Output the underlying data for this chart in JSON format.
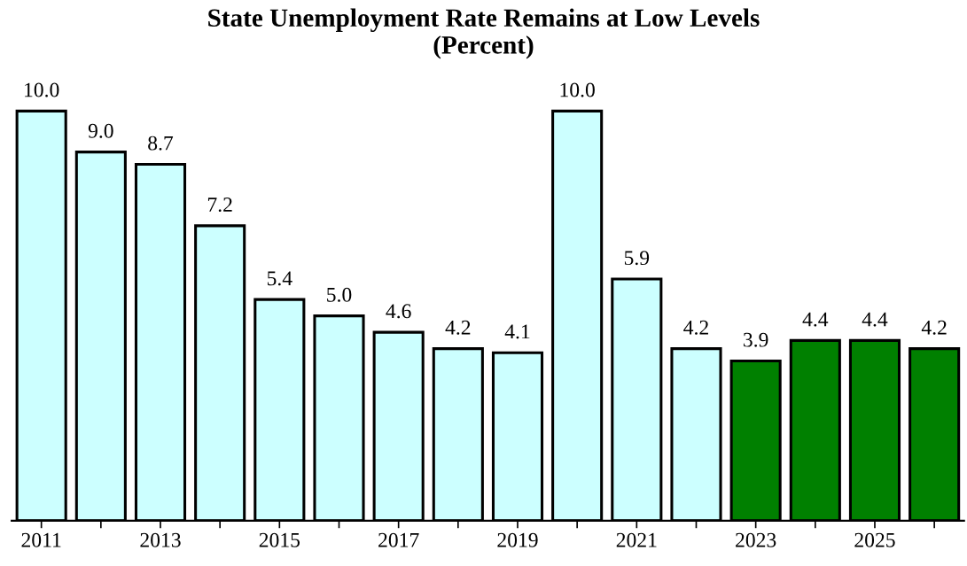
{
  "chart_data": {
    "type": "bar",
    "title": "State Unemployment Rate Remains at Low Levels\n(Percent)",
    "categories": [
      "2011",
      null,
      "2013",
      null,
      "2015",
      null,
      "2017",
      null,
      "2019",
      null,
      "2021",
      null,
      "2023",
      null,
      "2025",
      null
    ],
    "values": [
      10.0,
      9.0,
      8.7,
      7.2,
      5.4,
      5.0,
      4.6,
      4.2,
      4.1,
      10.0,
      5.9,
      4.2,
      3.9,
      4.4,
      4.4,
      4.2
    ],
    "colors": [
      "#ccffff",
      "#ccffff",
      "#ccffff",
      "#ccffff",
      "#ccffff",
      "#ccffff",
      "#ccffff",
      "#ccffff",
      "#ccffff",
      "#ccffff",
      "#ccffff",
      "#ccffff",
      "#008000",
      "#008000",
      "#008000",
      "#008000"
    ],
    "value_labels": [
      "10.0",
      "9.0",
      "8.7",
      "7.2",
      "5.4",
      "5.0",
      "4.6",
      "4.2",
      "4.1",
      "10.0",
      "5.9",
      "4.2",
      "3.9",
      "4.4",
      "4.4",
      "4.2"
    ],
    "grid": false,
    "legend": false
  }
}
